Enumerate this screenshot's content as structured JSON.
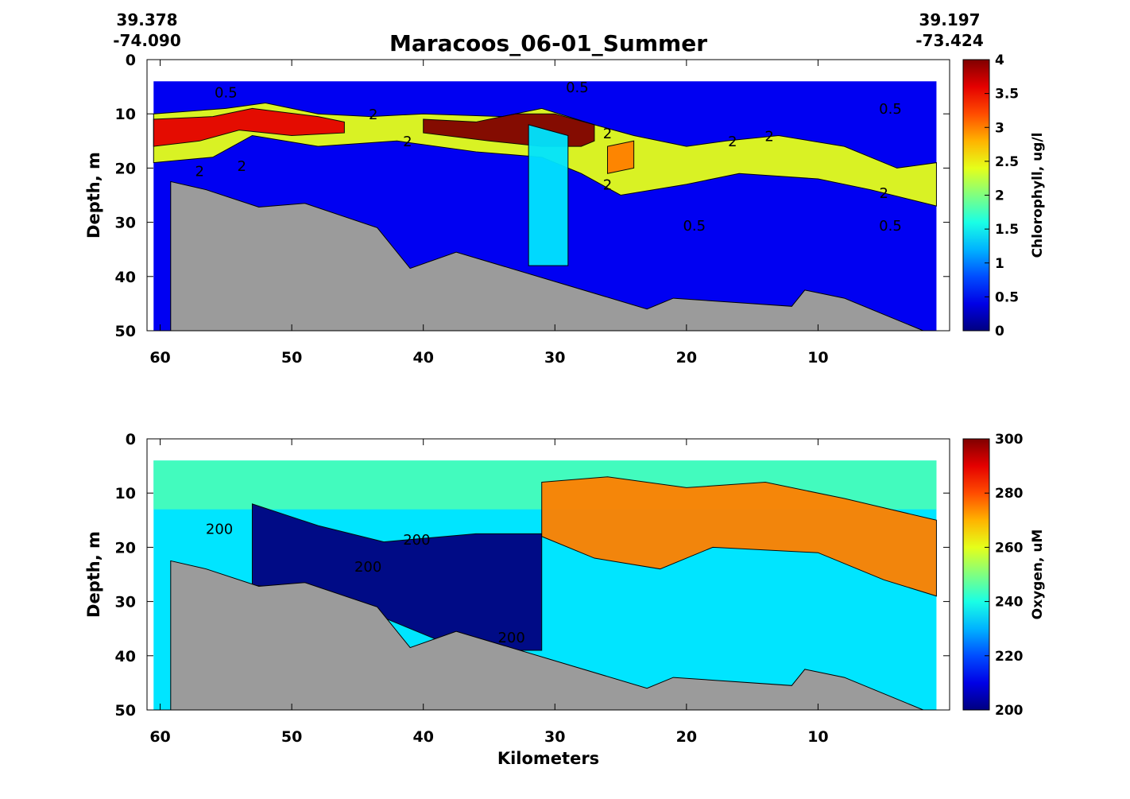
{
  "figure": {
    "title": "Maracoos_06-01_Summer",
    "start_lat": "39.378",
    "start_lon": "-74.090",
    "end_lat": "39.197",
    "end_lon": "-73.424",
    "xlabel": "Kilometers",
    "colors": {
      "bathymetry": "#9b9b9b"
    }
  },
  "chart_data": [
    {
      "type": "heatmap",
      "variable": "chlorophyll",
      "ylabel": "Depth, m",
      "xlabel": "",
      "colorbar_label": "Chlorophyll, ug/l",
      "colormap": "jet",
      "xlim": [
        61,
        0
      ],
      "ylim": [
        0,
        50
      ],
      "x_ticks": [
        60,
        50,
        40,
        30,
        20,
        10
      ],
      "y_ticks": [
        0,
        10,
        20,
        30,
        40,
        50
      ],
      "color_range": [
        0,
        4
      ],
      "colorbar_ticks": [
        "0",
        "0.5",
        "1",
        "1.5",
        "2",
        "2.5",
        "3",
        "3.5",
        "4"
      ],
      "data_depth_top": 4,
      "contour_labels": [
        {
          "text": "0.5",
          "x": 55,
          "y": 7
        },
        {
          "text": "0.5",
          "x": 28.3,
          "y": 6
        },
        {
          "text": "0.5",
          "x": 4.5,
          "y": 10
        },
        {
          "text": "0.5",
          "x": 19.4,
          "y": 31.5
        },
        {
          "text": "0.5",
          "x": 4.5,
          "y": 31.5
        },
        {
          "text": "2",
          "x": 43.8,
          "y": 11
        },
        {
          "text": "2",
          "x": 41.2,
          "y": 16
        },
        {
          "text": "2",
          "x": 26,
          "y": 14.5
        },
        {
          "text": "2",
          "x": 26,
          "y": 24
        },
        {
          "text": "2",
          "x": 16.5,
          "y": 16
        },
        {
          "text": "2",
          "x": 13.7,
          "y": 15
        },
        {
          "text": "2",
          "x": 5,
          "y": 25.5
        },
        {
          "text": "2",
          "x": 57,
          "y": 21.5
        },
        {
          "text": "2",
          "x": 53.8,
          "y": 20.5
        }
      ],
      "layers": [
        {
          "name": "chlorophyll-max-layer",
          "top": [
            [
              60.5,
              10
            ],
            [
              55,
              9
            ],
            [
              52,
              8
            ],
            [
              48,
              10
            ],
            [
              44,
              10.5
            ],
            [
              40,
              10
            ],
            [
              34,
              10.5
            ],
            [
              31,
              9
            ],
            [
              27,
              12
            ],
            [
              24,
              14
            ],
            [
              20,
              16
            ],
            [
              17,
              15
            ],
            [
              13,
              14
            ],
            [
              8,
              16
            ],
            [
              4,
              20
            ],
            [
              1,
              19
            ]
          ],
          "bottom": [
            [
              60.5,
              19
            ],
            [
              56,
              18
            ],
            [
              53,
              14
            ],
            [
              48,
              16
            ],
            [
              42,
              15
            ],
            [
              36,
              17
            ],
            [
              31,
              18
            ],
            [
              28,
              21
            ],
            [
              25,
              25
            ],
            [
              20,
              23
            ],
            [
              16,
              21
            ],
            [
              10,
              22
            ],
            [
              6,
              24
            ],
            [
              1,
              27
            ]
          ],
          "value": 2.4
        },
        {
          "name": "chlorophyll-core-west",
          "top": [
            [
              60.5,
              11
            ],
            [
              56,
              10.5
            ],
            [
              53,
              9
            ],
            [
              48,
              10.5
            ],
            [
              46,
              11.5
            ]
          ],
          "bottom": [
            [
              60.5,
              16
            ],
            [
              57,
              15
            ],
            [
              54,
              13
            ],
            [
              50,
              14
            ],
            [
              46,
              13.5
            ]
          ],
          "value": 3.6
        },
        {
          "name": "chlorophyll-core-mid",
          "top": [
            [
              40,
              11
            ],
            [
              36,
              11.5
            ],
            [
              33,
              10
            ],
            [
              30,
              10
            ],
            [
              27,
              12
            ]
          ],
          "bottom": [
            [
              40,
              13.5
            ],
            [
              35,
              15
            ],
            [
              31,
              16
            ],
            [
              28,
              16
            ],
            [
              27,
              15
            ]
          ],
          "value": 4
        },
        {
          "name": "chlorophyll-core-east",
          "top": [
            [
              26,
              16
            ],
            [
              24,
              15
            ]
          ],
          "bottom": [
            [
              26,
              21
            ],
            [
              24,
              20
            ]
          ],
          "value": 3
        },
        {
          "name": "chlorophyll-middle-column",
          "top": [
            [
              32,
              12
            ],
            [
              29,
              14
            ]
          ],
          "bottom": [
            [
              32,
              38
            ],
            [
              29,
              38
            ]
          ],
          "value": 1.4
        }
      ]
    },
    {
      "type": "heatmap",
      "variable": "oxygen",
      "ylabel": "Depth, m",
      "xlabel": "Kilometers",
      "colorbar_label": "Oxygen, uM",
      "colormap": "jet",
      "xlim": [
        61,
        0
      ],
      "ylim": [
        0,
        50
      ],
      "x_ticks": [
        60,
        50,
        40,
        30,
        20,
        10
      ],
      "y_ticks": [
        0,
        10,
        20,
        30,
        40,
        50
      ],
      "color_range": [
        200,
        300
      ],
      "colorbar_ticks": [
        "200",
        "220",
        "240",
        "260",
        "280",
        "300"
      ],
      "data_depth_top": 4,
      "contour_labels": [
        {
          "text": "200",
          "x": 55.5,
          "y": 17.5
        },
        {
          "text": "200",
          "x": 40.5,
          "y": 19.5
        },
        {
          "text": "200",
          "x": 44.2,
          "y": 24.5
        },
        {
          "text": "200",
          "x": 33.3,
          "y": 37.5
        }
      ],
      "layers": [
        {
          "name": "oxygen-low-core",
          "top": [
            [
              53,
              12
            ],
            [
              48,
              16
            ],
            [
              43,
              19
            ],
            [
              36,
              17.5
            ],
            [
              31,
              17.5
            ]
          ],
          "bottom": [
            [
              53,
              27
            ],
            [
              48,
              28
            ],
            [
              43,
              33
            ],
            [
              38,
              38
            ],
            [
              33,
              39
            ],
            [
              31,
              39
            ]
          ],
          "value": 200
        },
        {
          "name": "oxygen-high-layer",
          "top": [
            [
              31,
              8
            ],
            [
              26,
              7
            ],
            [
              20,
              9
            ],
            [
              14,
              8
            ],
            [
              8,
              11
            ],
            [
              1,
              15
            ]
          ],
          "bottom": [
            [
              31,
              18
            ],
            [
              27,
              22
            ],
            [
              22,
              24
            ],
            [
              18,
              20
            ],
            [
              10,
              21
            ],
            [
              5,
              26
            ],
            [
              1,
              29
            ]
          ],
          "value": 275
        }
      ]
    }
  ]
}
